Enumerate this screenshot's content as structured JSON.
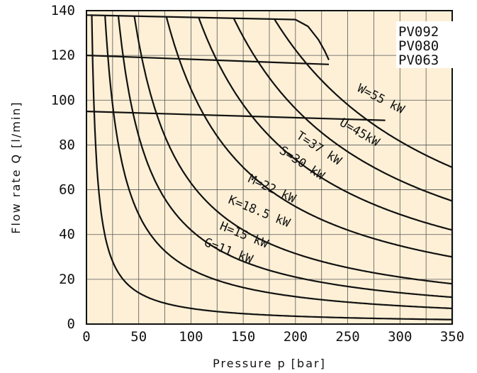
{
  "chart_data": {
    "type": "line",
    "xlabel": "Pressure p [bar]",
    "ylabel": "Flow rate Q [l/min]",
    "xlim": [
      0,
      350
    ],
    "ylim": [
      0,
      140
    ],
    "x_ticks": [
      "0",
      "50",
      "100",
      "150",
      "200",
      "250",
      "300",
      "350"
    ],
    "y_ticks": [
      "0",
      "20",
      "40",
      "60",
      "80",
      "100",
      "120",
      "140"
    ],
    "grid": true,
    "background": "#fdf0d6",
    "line_color": "#111111",
    "legend": [
      "PV092",
      "PV080",
      "PV063"
    ],
    "legend_position": "top-right",
    "pump_limit_curves": [
      {
        "name": "PV092",
        "points": [
          [
            0,
            138
          ],
          [
            200,
            136
          ],
          [
            212,
            133
          ],
          [
            222,
            127
          ],
          [
            228,
            122
          ],
          [
            232,
            118
          ]
        ]
      },
      {
        "name": "PV080",
        "points": [
          [
            0,
            120
          ],
          [
            232,
            116
          ]
        ]
      },
      {
        "name": "PV063",
        "points": [
          [
            0,
            95
          ],
          [
            286,
            91
          ]
        ]
      }
    ],
    "power_curves": [
      {
        "label": "G=11 kW",
        "power_kw": 11,
        "x_end": 350,
        "y_end": 2
      },
      {
        "label": "H=15 kW",
        "power_kw": 15,
        "x_end": 350,
        "y_end": 7
      },
      {
        "label": "K=18.5 kW",
        "power_kw": 18.5,
        "x_end": 350,
        "y_end": 12
      },
      {
        "label": "M=22 kW",
        "power_kw": 22,
        "x_end": 350,
        "y_end": 18
      },
      {
        "label": "S=30 kW",
        "power_kw": 30,
        "x_end": 350,
        "y_end": 30
      },
      {
        "label": "T=37 kW",
        "power_kw": 37,
        "x_end": 350,
        "y_end": 42
      },
      {
        "label": "U=45kW",
        "power_kw": 45,
        "x_end": 350,
        "y_end": 55
      },
      {
        "label": "W=55 kW",
        "power_kw": 55,
        "x_end": 350,
        "y_end": 70
      }
    ]
  }
}
